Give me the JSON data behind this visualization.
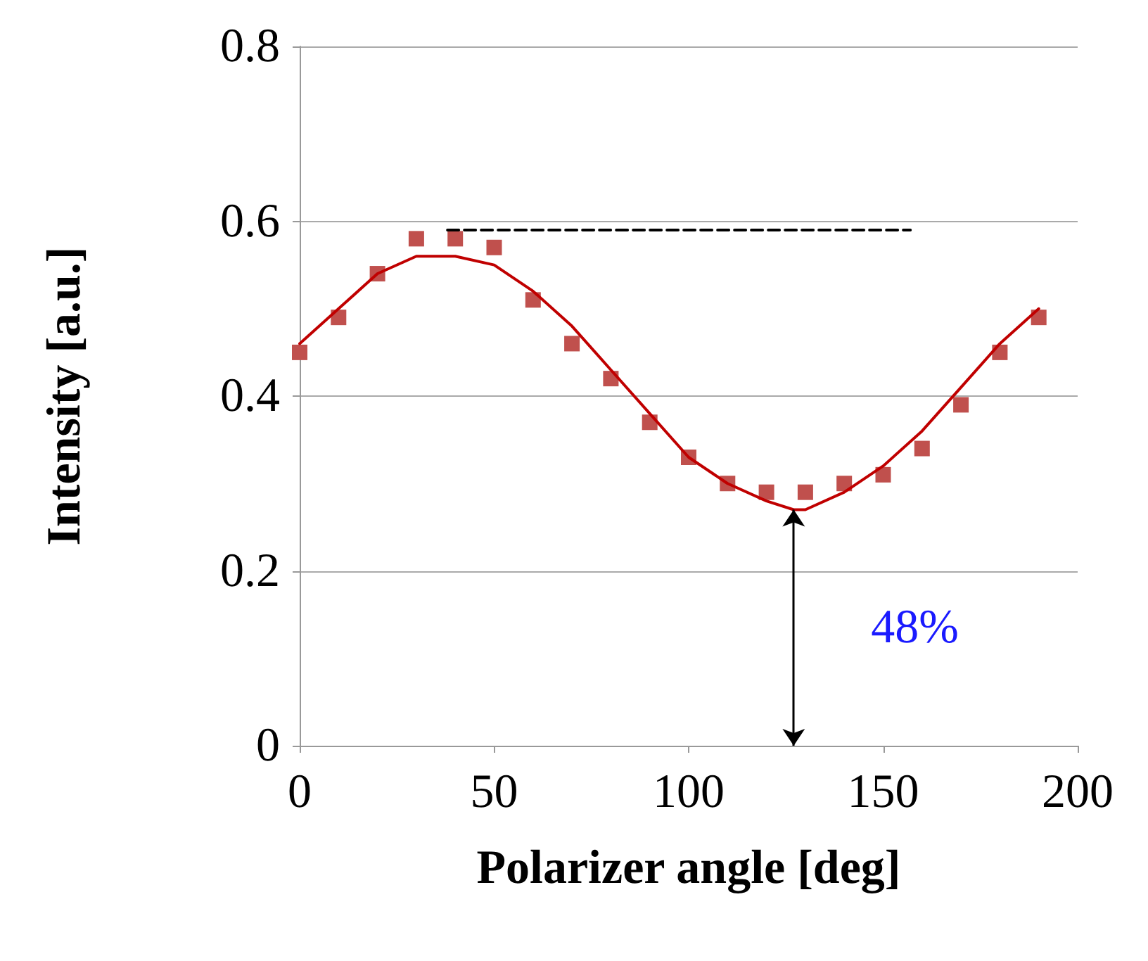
{
  "chart_data": {
    "type": "scatter",
    "xlabel": "Polarizer angle [deg]",
    "ylabel": "Intensity [a.u.]",
    "xlim": [
      0,
      200
    ],
    "xticks": [
      0,
      50,
      100,
      150,
      200
    ],
    "ylim": [
      0,
      0.8
    ],
    "yticks": [
      0,
      0.2,
      0.4,
      0.6,
      0.8
    ],
    "grid": "y",
    "marker": "square",
    "x": [
      0,
      10,
      20,
      30,
      40,
      50,
      60,
      70,
      80,
      90,
      100,
      110,
      120,
      130,
      140,
      150,
      160,
      170,
      180,
      190
    ],
    "series": [
      {
        "color": "#c0504d",
        "values": [
          0.45,
          0.49,
          0.54,
          0.58,
          0.58,
          0.57,
          0.51,
          0.46,
          0.42,
          0.37,
          0.33,
          0.3,
          0.29,
          0.29,
          0.3,
          0.31,
          0.34,
          0.39,
          0.45,
          0.49
        ]
      },
      {
        "type": "line",
        "color": "#c00000",
        "marker": "none",
        "line_style": "solid",
        "x": [
          0,
          10,
          20,
          30,
          37,
          40,
          50,
          60,
          70,
          80,
          90,
          100,
          110,
          120,
          127,
          130,
          140,
          150,
          160,
          170,
          180,
          190
        ],
        "values": [
          0.46,
          0.5,
          0.54,
          0.56,
          0.56,
          0.56,
          0.55,
          0.52,
          0.48,
          0.43,
          0.38,
          0.33,
          0.3,
          0.28,
          0.27,
          0.27,
          0.29,
          0.32,
          0.36,
          0.41,
          0.46,
          0.5
        ]
      },
      {
        "type": "line",
        "color": "#000000",
        "marker": "none",
        "line_style": "dashed",
        "x": [
          38,
          157
        ],
        "values": [
          0.59,
          0.59
        ]
      }
    ],
    "annotations": [
      {
        "text": "48%",
        "x": 127,
        "y": 0.27
      }
    ]
  }
}
